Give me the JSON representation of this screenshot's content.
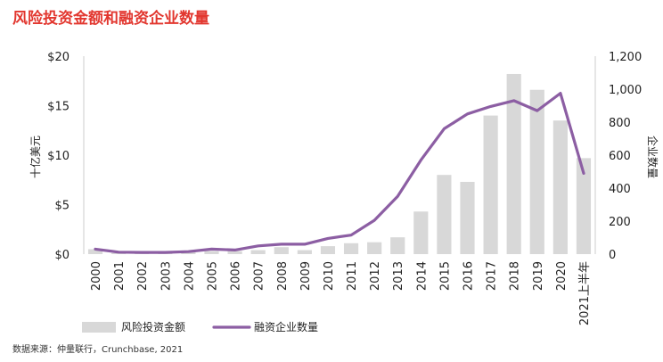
{
  "chart_data": {
    "type": "bar",
    "title": "风险投资金额和融资企业数量",
    "categories": [
      "2000",
      "2001",
      "2002",
      "2003",
      "2004",
      "2005",
      "2006",
      "2007",
      "2008",
      "2009",
      "2010",
      "2011",
      "2012",
      "2013",
      "2014",
      "2015",
      "2016",
      "2017",
      "2018",
      "2019",
      "2020",
      "2021上半年"
    ],
    "series": [
      {
        "name": "风险投资金额",
        "kind": "bar",
        "axis": "left",
        "color": "#d8d8d8",
        "values": [
          0.5,
          0.1,
          0.1,
          0.2,
          0.2,
          0.3,
          0.3,
          0.4,
          0.7,
          0.4,
          0.8,
          1.1,
          1.2,
          1.7,
          4.3,
          8.0,
          7.3,
          14.0,
          18.2,
          16.6,
          13.5,
          9.7
        ]
      },
      {
        "name": "融资企业数量",
        "kind": "line",
        "axis": "right",
        "color": "#8c5ea3",
        "values": [
          30,
          12,
          10,
          10,
          15,
          30,
          25,
          50,
          60,
          60,
          95,
          115,
          205,
          350,
          570,
          760,
          850,
          895,
          930,
          870,
          975,
          490
        ]
      }
    ],
    "ylabel": "十亿美元",
    "y2label": "企业数量",
    "ylim": [
      0,
      20
    ],
    "y2lim": [
      0,
      1200
    ],
    "yticks": [
      "$0",
      "$5",
      "$10",
      "$15",
      "$20"
    ],
    "y2ticks": [
      "0",
      "200",
      "400",
      "600",
      "800",
      "1,000",
      "1,200"
    ],
    "grid": false,
    "legend_position": "bottom",
    "source": "数据来源：仲量联行，Crunchbase, 2021"
  }
}
